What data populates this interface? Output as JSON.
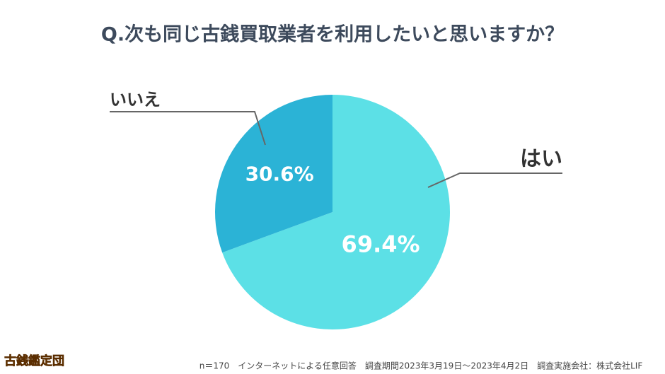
{
  "chart_data": {
    "type": "pie",
    "title": "Q.次も同じ古銭買取業者を利用したいと思いますか？",
    "categories": [
      "はい",
      "いいえ"
    ],
    "values": [
      69.4,
      30.6
    ],
    "value_labels": [
      "69.4%",
      "30.6%"
    ],
    "colors": [
      "#5ce0e6",
      "#2bb3d6"
    ],
    "footnote": "n＝170　インターネットによる任意回答　調査期間2023年3月19日～2023年4月2日　調査実施会社：株式会社LIF",
    "logo": "古銭鑑定団"
  }
}
